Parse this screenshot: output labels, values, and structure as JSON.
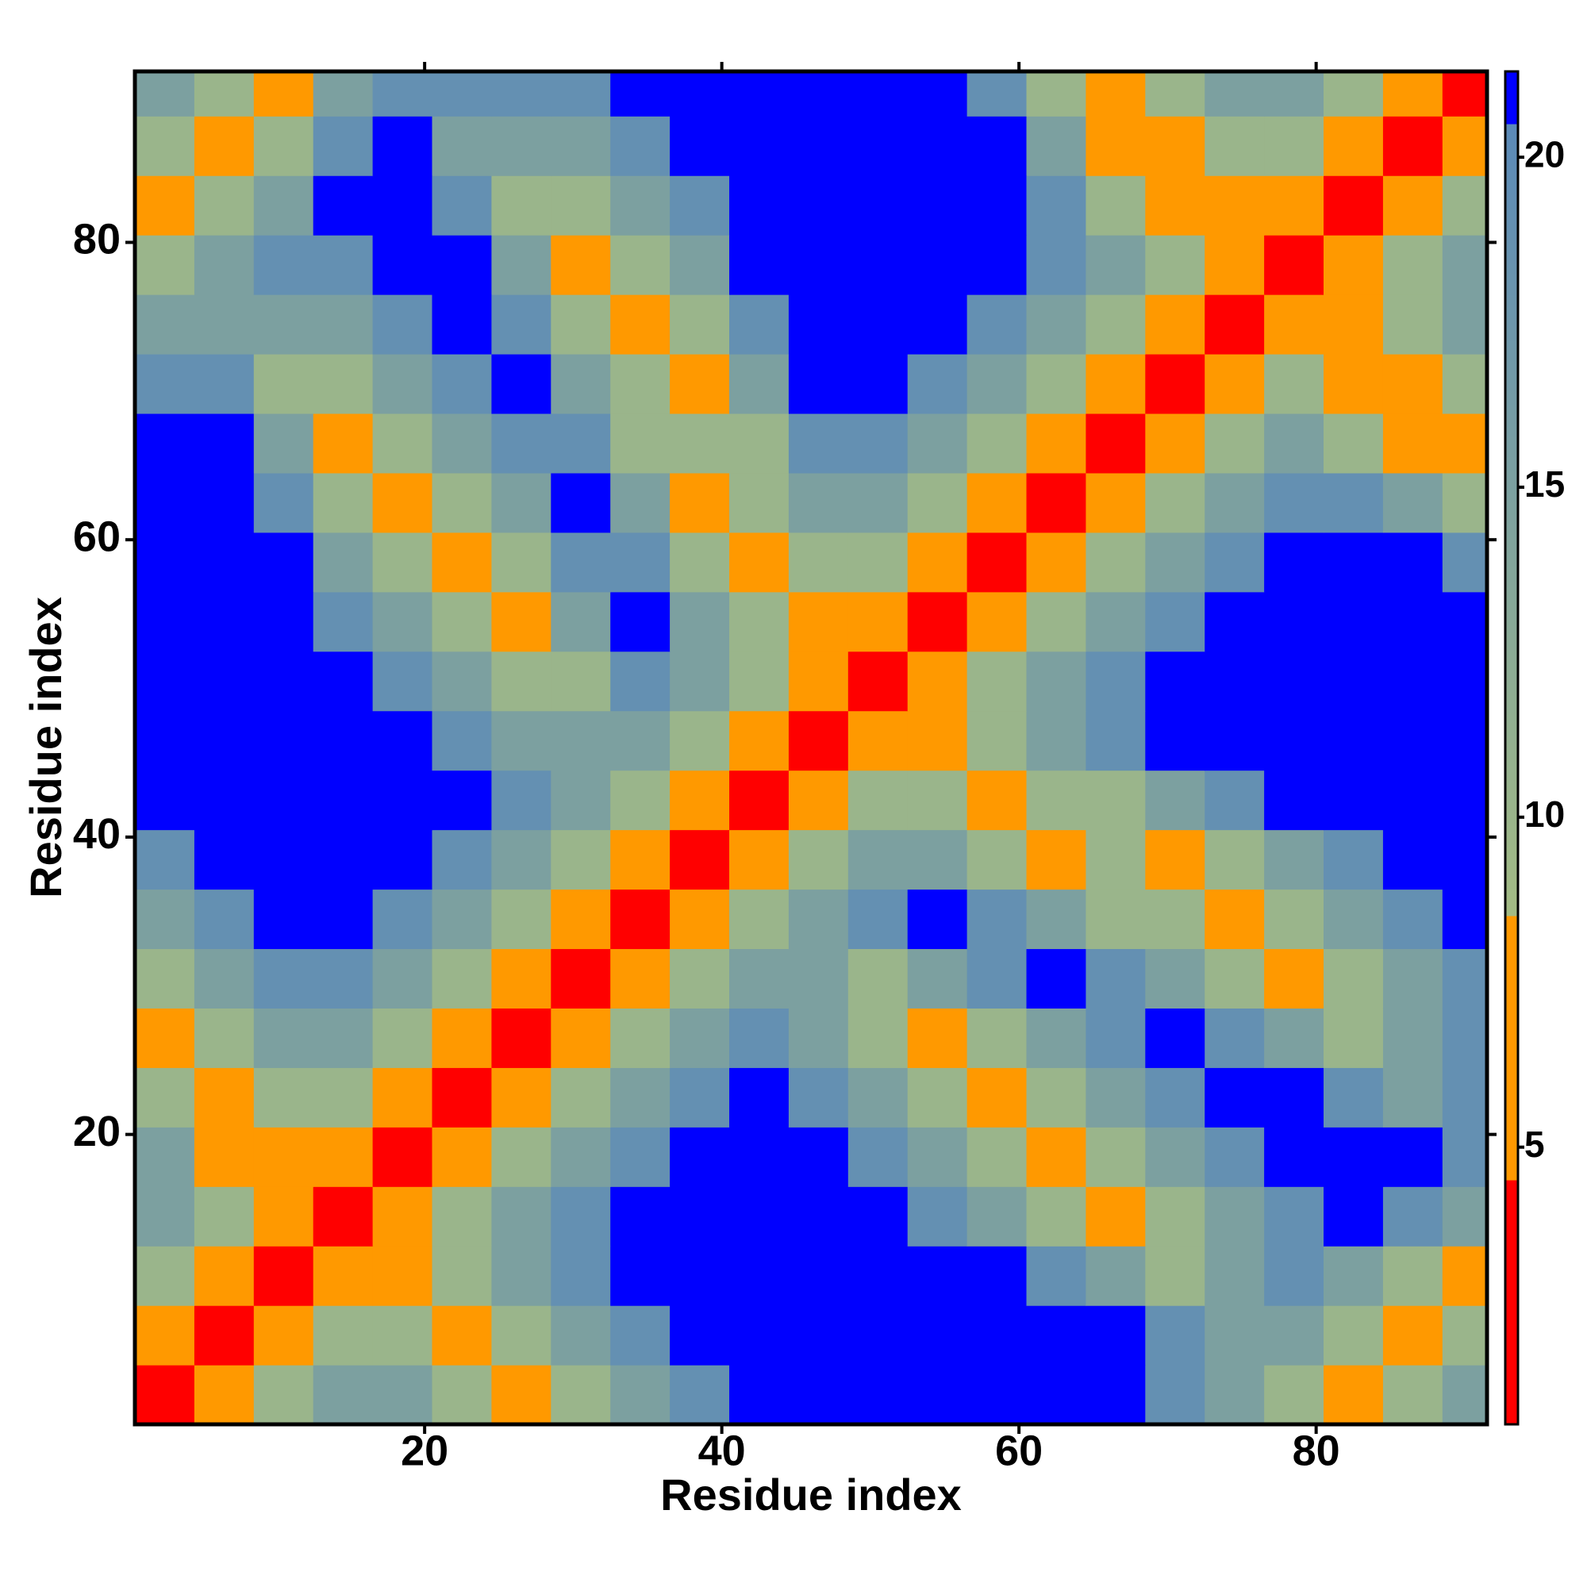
{
  "chart_data": {
    "type": "heatmap",
    "xlabel": "Residue index",
    "ylabel": "Residue index",
    "x": [
      2.5,
      6.5,
      10.5,
      14.5,
      18.5,
      22.5,
      26.5,
      30.5,
      34.5,
      38.5,
      42.5,
      46.5,
      50.5,
      54.5,
      58.5,
      62.5,
      66.5,
      70.5,
      74.5,
      78.5,
      82.5,
      86.5,
      90.5
    ],
    "y": [
      2.5,
      6.5,
      10.5,
      14.5,
      18.5,
      22.5,
      26.5,
      30.5,
      34.5,
      38.5,
      42.5,
      46.5,
      50.5,
      54.5,
      58.5,
      62.5,
      66.5,
      70.5,
      74.5,
      78.5,
      82.5,
      86.5,
      90.5
    ],
    "z": [
      [
        1,
        6,
        10,
        15,
        15,
        10,
        6,
        10,
        15,
        19,
        25,
        25,
        25,
        25,
        25,
        25,
        25,
        19,
        15,
        10,
        6,
        10,
        15
      ],
      [
        6,
        1,
        6,
        10,
        10,
        6,
        10,
        15,
        19,
        25,
        25,
        25,
        25,
        25,
        25,
        25,
        25,
        19,
        15,
        15,
        10,
        6,
        10
      ],
      [
        10,
        6,
        1,
        6,
        6,
        10,
        15,
        19,
        25,
        25,
        25,
        25,
        25,
        25,
        25,
        19,
        15,
        10,
        15,
        19,
        15,
        10,
        6
      ],
      [
        15,
        10,
        6,
        1,
        6,
        10,
        15,
        19,
        25,
        25,
        25,
        25,
        25,
        19,
        15,
        10,
        6,
        10,
        15,
        19,
        25,
        19,
        15
      ],
      [
        15,
        6,
        6,
        6,
        1,
        6,
        10,
        15,
        19,
        25,
        25,
        25,
        19,
        15,
        10,
        6,
        10,
        15,
        19,
        25,
        25,
        25,
        19
      ],
      [
        10,
        6,
        10,
        10,
        6,
        1,
        6,
        10,
        15,
        19,
        25,
        19,
        15,
        10,
        6,
        10,
        15,
        19,
        25,
        25,
        19,
        15,
        19
      ],
      [
        6,
        10,
        15,
        15,
        10,
        6,
        1,
        6,
        10,
        15,
        19,
        15,
        10,
        6,
        10,
        15,
        19,
        25,
        19,
        15,
        10,
        15,
        19
      ],
      [
        10,
        15,
        19,
        19,
        15,
        10,
        6,
        1,
        6,
        10,
        15,
        15,
        10,
        15,
        19,
        25,
        19,
        15,
        10,
        6,
        10,
        15,
        19
      ],
      [
        15,
        19,
        25,
        25,
        19,
        15,
        10,
        6,
        1,
        6,
        10,
        15,
        19,
        25,
        19,
        15,
        10,
        10,
        6,
        10,
        15,
        19,
        25
      ],
      [
        19,
        25,
        25,
        25,
        25,
        19,
        15,
        10,
        6,
        1,
        6,
        10,
        15,
        15,
        10,
        6,
        10,
        6,
        10,
        15,
        19,
        25,
        25
      ],
      [
        25,
        25,
        25,
        25,
        25,
        25,
        19,
        15,
        10,
        6,
        1,
        6,
        10,
        10,
        6,
        10,
        10,
        15,
        19,
        25,
        25,
        25,
        25
      ],
      [
        25,
        25,
        25,
        25,
        25,
        19,
        15,
        15,
        15,
        10,
        6,
        1,
        6,
        6,
        10,
        15,
        19,
        25,
        25,
        25,
        25,
        25,
        25
      ],
      [
        25,
        25,
        25,
        25,
        19,
        15,
        10,
        10,
        19,
        15,
        10,
        6,
        1,
        6,
        10,
        15,
        19,
        25,
        25,
        25,
        25,
        25,
        25
      ],
      [
        25,
        25,
        25,
        19,
        15,
        10,
        6,
        15,
        25,
        15,
        10,
        6,
        6,
        1,
        6,
        10,
        15,
        19,
        25,
        25,
        25,
        25,
        25
      ],
      [
        25,
        25,
        25,
        15,
        10,
        6,
        10,
        19,
        19,
        10,
        6,
        10,
        10,
        6,
        1,
        6,
        10,
        15,
        19,
        25,
        25,
        25,
        19
      ],
      [
        25,
        25,
        19,
        10,
        6,
        10,
        15,
        25,
        15,
        6,
        10,
        15,
        15,
        10,
        6,
        1,
        6,
        10,
        15,
        19,
        19,
        15,
        10
      ],
      [
        25,
        25,
        15,
        6,
        10,
        15,
        19,
        19,
        10,
        10,
        10,
        19,
        19,
        15,
        10,
        6,
        1,
        6,
        10,
        15,
        10,
        6,
        6
      ],
      [
        19,
        19,
        10,
        10,
        15,
        19,
        25,
        15,
        10,
        6,
        15,
        25,
        25,
        19,
        15,
        10,
        6,
        1,
        6,
        10,
        6,
        6,
        10
      ],
      [
        15,
        15,
        15,
        15,
        19,
        25,
        19,
        10,
        6,
        10,
        19,
        25,
        25,
        25,
        19,
        15,
        10,
        6,
        1,
        6,
        6,
        10,
        15
      ],
      [
        10,
        15,
        19,
        19,
        25,
        25,
        15,
        6,
        10,
        15,
        25,
        25,
        25,
        25,
        25,
        19,
        15,
        10,
        6,
        1,
        6,
        10,
        15
      ],
      [
        6,
        10,
        15,
        25,
        25,
        19,
        10,
        10,
        15,
        19,
        25,
        25,
        25,
        25,
        25,
        19,
        10,
        6,
        6,
        6,
        1,
        6,
        10
      ],
      [
        10,
        6,
        10,
        19,
        25,
        15,
        15,
        15,
        19,
        25,
        25,
        25,
        25,
        25,
        25,
        15,
        6,
        6,
        10,
        10,
        6,
        1,
        6
      ],
      [
        15,
        10,
        6,
        15,
        19,
        19,
        19,
        19,
        25,
        25,
        25,
        25,
        25,
        25,
        19,
        10,
        6,
        10,
        15,
        15,
        10,
        6,
        1
      ]
    ],
    "xlim": [
      0.5,
      91.5
    ],
    "ylim": [
      0.5,
      91.5
    ],
    "xticks": [
      20,
      40,
      60,
      80
    ],
    "yticks": [
      20,
      40,
      60,
      80
    ],
    "clim": [
      0.8,
      21.3
    ],
    "cticks": [
      5,
      10,
      15,
      20
    ],
    "colorscale": [
      [
        0.8,
        "#ff0000"
      ],
      [
        4.5,
        "#ff0000"
      ],
      [
        4.5,
        "#ff9900"
      ],
      [
        8.5,
        "#ff9900"
      ],
      [
        8.5,
        "#a3bb84"
      ],
      [
        20.5,
        "#5b8ab8"
      ],
      [
        20.5,
        "#0000ff"
      ],
      [
        21.3,
        "#0000ff"
      ]
    ]
  }
}
